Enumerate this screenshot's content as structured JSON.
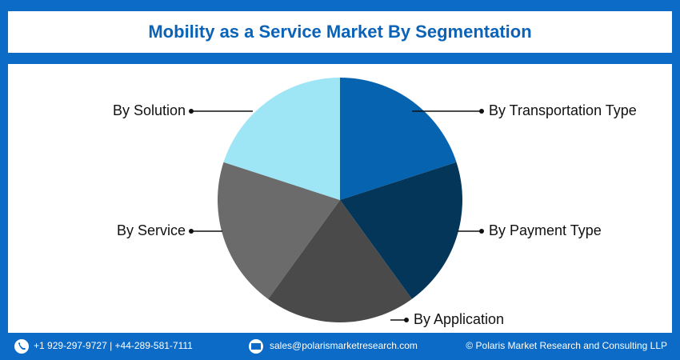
{
  "chart_data": {
    "type": "pie",
    "title": "Mobility as a Service Market By Segmentation",
    "categories": [
      "By Transportation Type",
      "By Payment Type",
      "By Application",
      "By Service",
      "By Solution"
    ],
    "values": [
      20,
      20,
      20,
      20,
      20
    ],
    "colors": [
      "#0563b0",
      "#04365a",
      "#4a4a4a",
      "#6b6b6b",
      "#9ee6f5"
    ]
  },
  "footer": {
    "phone": "+1 929-297-9727 | +44-289-581-7111",
    "email": "sales@polarismarketresearch.com",
    "copyright": "© Polaris Market Research and Consulting LLP"
  }
}
